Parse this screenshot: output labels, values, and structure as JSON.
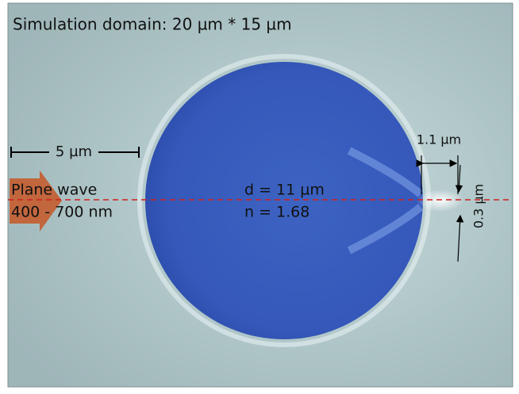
{
  "header": {
    "title": "Simulation domain: 20 µm * 15 µm"
  },
  "labels": {
    "scale_bar": "5 µm",
    "source": [
      "Plane wave",
      "400 - 700 nm"
    ],
    "sphere": [
      "d = 11 µm",
      "n = 1.68"
    ],
    "focal_distance": "1.1 µm",
    "focal_width": "0.3 µm"
  }
}
